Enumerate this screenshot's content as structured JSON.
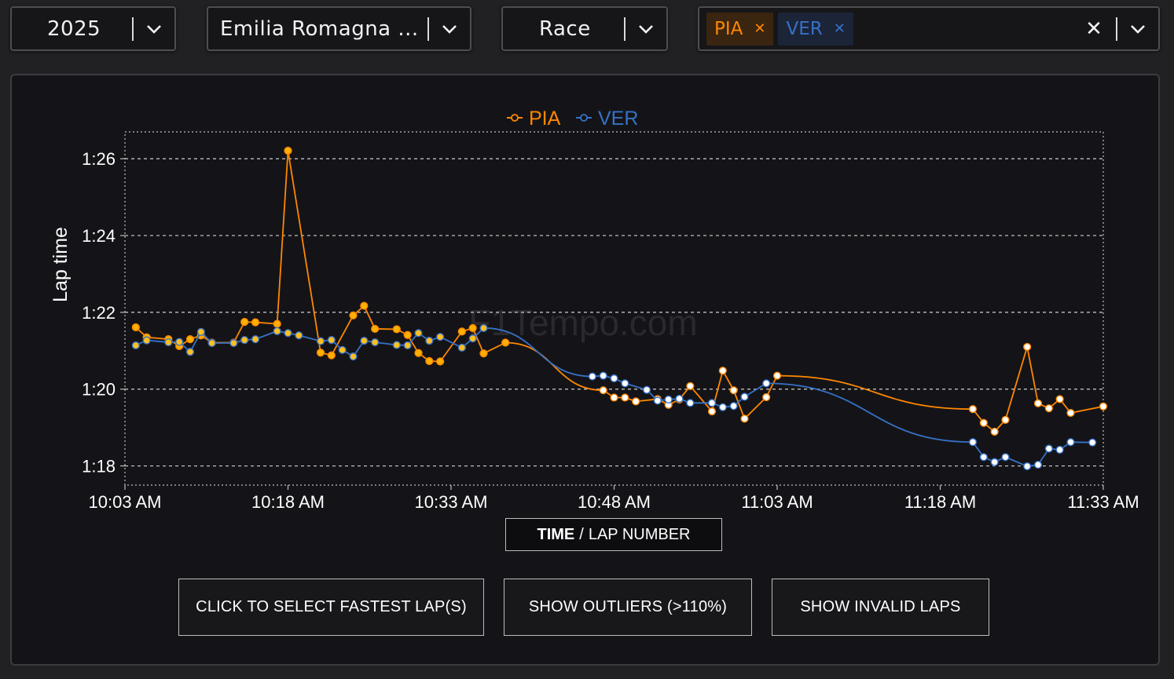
{
  "filters": {
    "year": "2025",
    "event": "Emilia Romagna ...",
    "session": "Race",
    "drivers": [
      {
        "code": "PIA",
        "color": "#ff8700",
        "bg": "#3a2510"
      },
      {
        "code": "VER",
        "color": "#3671c6",
        "bg": "#1c2438"
      }
    ]
  },
  "watermark": "F1Tempo.com",
  "axis_toggle": {
    "active": "TIME",
    "separator": "/",
    "inactive": "LAP NUMBER"
  },
  "buttons": {
    "fastest": "CLICK TO SELECT FASTEST LAP(S)",
    "outliers": "SHOW OUTLIERS (>110%)",
    "invalid": "SHOW INVALID LAPS"
  },
  "chart_data": {
    "type": "line",
    "title": "",
    "xlabel": "",
    "ylabel": "Lap time",
    "x_ticks": [
      "10:03 AM",
      "10:18 AM",
      "10:33 AM",
      "10:48 AM",
      "11:03 AM",
      "11:18 AM",
      "11:33 AM"
    ],
    "y_ticks": [
      "1:18",
      "1:20",
      "1:22",
      "1:24",
      "1:26"
    ],
    "xlim": [
      "10:03",
      "11:33"
    ],
    "ylim": [
      77.5,
      86.7
    ],
    "grid": true,
    "legend": "top-center",
    "series": [
      {
        "name": "PIA",
        "color": "#ff8700",
        "data": [
          [
            "10:04",
            81.61
          ],
          [
            "10:05",
            81.35
          ],
          [
            "10:07",
            81.3
          ],
          [
            "10:08",
            81.12
          ],
          [
            "10:09",
            81.3
          ],
          [
            "10:10",
            81.4
          ],
          [
            "10:11",
            81.21
          ],
          [
            "10:13",
            81.21
          ],
          [
            "10:14",
            81.75
          ],
          [
            "10:15",
            81.74
          ],
          [
            "10:17",
            81.7
          ],
          [
            "10:18",
            86.21
          ],
          [
            "10:21",
            80.95
          ],
          [
            "10:22",
            80.88
          ],
          [
            "10:24",
            81.92
          ],
          [
            "10:25",
            82.17
          ],
          [
            "10:26",
            81.57
          ],
          [
            "10:28",
            81.56
          ],
          [
            "10:29",
            81.41
          ],
          [
            "10:30",
            80.94
          ],
          [
            "10:31",
            80.73
          ],
          [
            "10:32",
            80.72
          ],
          [
            "10:34",
            81.5
          ],
          [
            "10:35",
            81.59
          ],
          [
            "10:36",
            80.93
          ],
          [
            "10:38",
            81.21
          ],
          [
            "10:47",
            79.97
          ],
          [
            "10:48",
            79.78
          ],
          [
            "10:49",
            79.78
          ],
          [
            "10:50",
            79.68
          ],
          [
            "10:52",
            79.74
          ],
          [
            "10:53",
            79.59
          ],
          [
            "10:54",
            79.73
          ],
          [
            "10:55",
            80.08
          ],
          [
            "10:57",
            79.42
          ],
          [
            "10:58",
            80.48
          ],
          [
            "10:59",
            79.97
          ],
          [
            "11:00",
            79.23
          ],
          [
            "11:02",
            79.79
          ],
          [
            "11:03",
            80.35
          ],
          [
            "11:21",
            79.48
          ],
          [
            "11:22",
            79.12
          ],
          [
            "11:23",
            78.89
          ],
          [
            "11:24",
            79.2
          ],
          [
            "11:26",
            81.1
          ],
          [
            "11:27",
            79.63
          ],
          [
            "11:28",
            79.5
          ],
          [
            "11:29",
            79.74
          ],
          [
            "11:30",
            79.38
          ],
          [
            "11:33",
            79.55
          ]
        ]
      },
      {
        "name": "VER",
        "color": "#3671c6",
        "data": [
          [
            "10:04",
            81.14
          ],
          [
            "10:05",
            81.27
          ],
          [
            "10:07",
            81.22
          ],
          [
            "10:08",
            81.23
          ],
          [
            "10:09",
            80.97
          ],
          [
            "10:10",
            81.49
          ],
          [
            "10:11",
            81.2
          ],
          [
            "10:13",
            81.2
          ],
          [
            "10:14",
            81.28
          ],
          [
            "10:15",
            81.3
          ],
          [
            "10:17",
            81.51
          ],
          [
            "10:18",
            81.46
          ],
          [
            "10:19",
            81.4
          ],
          [
            "10:21",
            81.25
          ],
          [
            "10:22",
            81.28
          ],
          [
            "10:23",
            81.02
          ],
          [
            "10:24",
            80.85
          ],
          [
            "10:25",
            81.26
          ],
          [
            "10:26",
            81.22
          ],
          [
            "10:28",
            81.15
          ],
          [
            "10:29",
            81.14
          ],
          [
            "10:30",
            81.46
          ],
          [
            "10:31",
            81.26
          ],
          [
            "10:32",
            81.36
          ],
          [
            "10:34",
            81.08
          ],
          [
            "10:35",
            81.32
          ],
          [
            "10:36",
            81.59
          ],
          [
            "10:46",
            80.33
          ],
          [
            "10:47",
            80.35
          ],
          [
            "10:48",
            80.28
          ],
          [
            "10:49",
            80.15
          ],
          [
            "10:51",
            79.98
          ],
          [
            "10:52",
            79.7
          ],
          [
            "10:53",
            79.73
          ],
          [
            "10:54",
            79.75
          ],
          [
            "10:55",
            79.64
          ],
          [
            "10:57",
            79.64
          ],
          [
            "10:58",
            79.53
          ],
          [
            "10:59",
            79.56
          ],
          [
            "11:00",
            79.8
          ],
          [
            "11:02",
            80.15
          ],
          [
            "11:21",
            78.62
          ],
          [
            "11:22",
            78.23
          ],
          [
            "11:23",
            78.1
          ],
          [
            "11:24",
            78.23
          ],
          [
            "11:26",
            77.99
          ],
          [
            "11:27",
            78.03
          ],
          [
            "11:28",
            78.45
          ],
          [
            "11:29",
            78.42
          ],
          [
            "11:30",
            78.62
          ],
          [
            "11:32",
            78.61
          ]
        ]
      }
    ]
  }
}
